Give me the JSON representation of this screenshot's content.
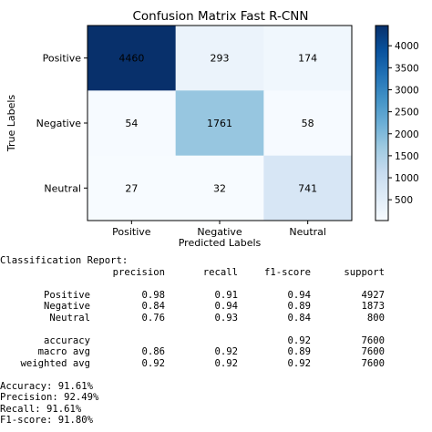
{
  "chart_data": {
    "type": "heatmap",
    "title": "Confusion Matrix Fast R-CNN",
    "xlabel": "Predicted Labels",
    "ylabel": "True Labels",
    "x_categories": [
      "Positive",
      "Negative",
      "Neutral"
    ],
    "y_categories": [
      "Positive",
      "Negative",
      "Neutral"
    ],
    "values": [
      [
        4460,
        293,
        174
      ],
      [
        54,
        1761,
        58
      ],
      [
        27,
        32,
        741
      ]
    ],
    "colormap": "Blues",
    "colorbar": {
      "range": [
        27,
        4460
      ],
      "ticks": [
        500,
        1000,
        1500,
        2000,
        2500,
        3000,
        3500,
        4000
      ]
    },
    "colors": {
      "low": "#f7fbff",
      "high": "#08306b"
    }
  },
  "report": {
    "heading": "Classification Report:",
    "columns": [
      "precision",
      "recall",
      "f1-score",
      "support"
    ],
    "rows": [
      {
        "label": "Positive",
        "precision": "0.98",
        "recall": "0.91",
        "f1": "0.94",
        "support": "4927"
      },
      {
        "label": "Negative",
        "precision": "0.84",
        "recall": "0.94",
        "f1": "0.89",
        "support": "1873"
      },
      {
        "label": "Neutral",
        "precision": "0.76",
        "recall": "0.93",
        "f1": "0.84",
        "support": "800"
      }
    ],
    "summary": [
      {
        "label": "accuracy",
        "precision": "",
        "recall": "",
        "f1": "0.92",
        "support": "7600"
      },
      {
        "label": "macro avg",
        "precision": "0.86",
        "recall": "0.92",
        "f1": "0.89",
        "support": "7600"
      },
      {
        "label": "weighted avg",
        "precision": "0.92",
        "recall": "0.92",
        "f1": "0.92",
        "support": "7600"
      }
    ],
    "metrics": [
      "Accuracy: 91.61%",
      "Precision: 92.49%",
      "Recall: 91.61%",
      "F1-score: 91.80%"
    ]
  }
}
